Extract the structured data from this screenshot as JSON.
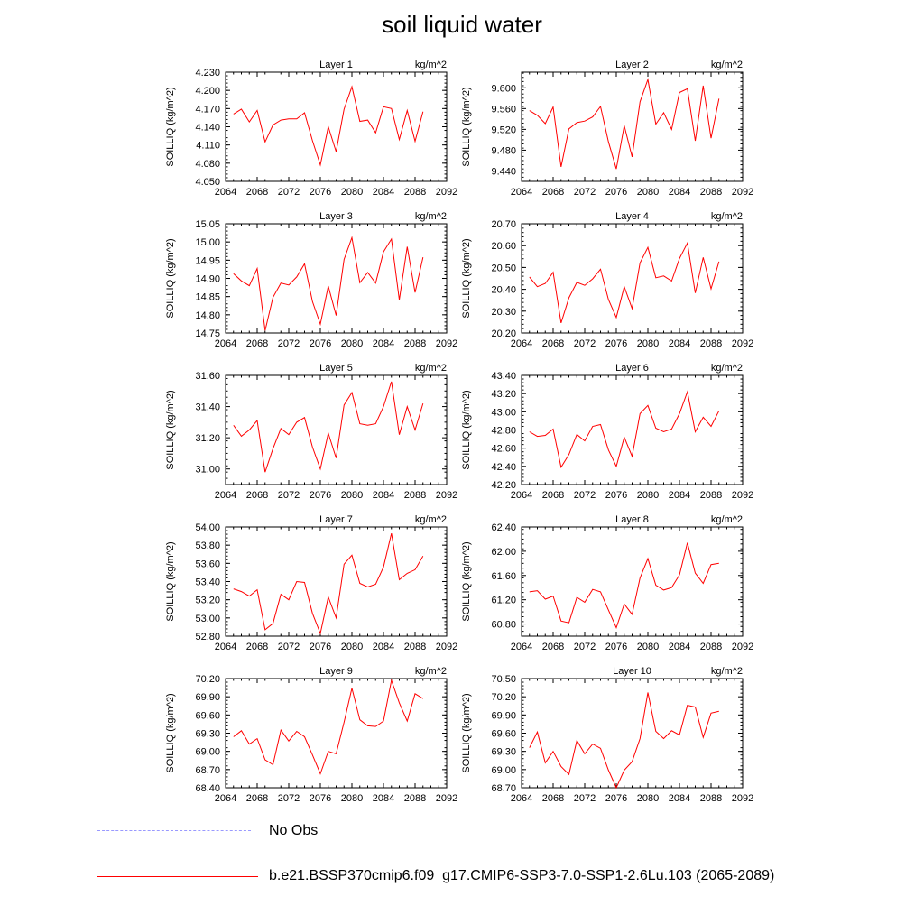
{
  "title": "soil liquid water",
  "legend": {
    "entries": [
      {
        "label": "No Obs",
        "color": "#9999ff",
        "style": "dashed"
      },
      {
        "label": "b.e21.BSSP370cmip6.f09_g17.CMIP6-SSP3-7.0-SSP1-2.6Lu.103 (2065-2089)",
        "color": "#ff0000",
        "style": "solid"
      }
    ]
  },
  "chart_data": [
    {
      "type": "line",
      "title": "Layer 1",
      "units": "kg/m^2",
      "ylabel": "SOILLIQ  (kg/m^2)",
      "xlim": [
        2064,
        2092
      ],
      "xticks": [
        2064,
        2068,
        2072,
        2076,
        2080,
        2084,
        2088,
        2092
      ],
      "ylim": [
        4.05,
        4.23
      ],
      "yticks": [
        "4.050",
        "4.080",
        "4.110",
        "4.140",
        "4.170",
        "4.200",
        "4.230"
      ],
      "x": [
        2065,
        2066,
        2067,
        2068,
        2069,
        2070,
        2071,
        2072,
        2073,
        2074,
        2075,
        2076,
        2077,
        2078,
        2079,
        2080,
        2081,
        2082,
        2083,
        2084,
        2085,
        2086,
        2087,
        2088,
        2089
      ],
      "series": [
        {
          "color": "#ff0000",
          "values": [
            4.161,
            4.169,
            4.148,
            4.167,
            4.115,
            4.143,
            4.151,
            4.153,
            4.153,
            4.163,
            4.117,
            4.077,
            4.14,
            4.099,
            4.169,
            4.206,
            4.149,
            4.151,
            4.13,
            4.173,
            4.17,
            4.119,
            4.167,
            4.116,
            4.165
          ]
        }
      ]
    },
    {
      "type": "line",
      "title": "Layer 2",
      "units": "kg/m^2",
      "ylabel": "SOILLIQ  (kg/m^2)",
      "xlim": [
        2064,
        2092
      ],
      "xticks": [
        2064,
        2068,
        2072,
        2076,
        2080,
        2084,
        2088,
        2092
      ],
      "ylim": [
        9.42,
        9.63
      ],
      "yticks": [
        "9.440",
        "9.480",
        "9.520",
        "9.560",
        "9.600"
      ],
      "x": [
        2065,
        2066,
        2067,
        2068,
        2069,
        2070,
        2071,
        2072,
        2073,
        2074,
        2075,
        2076,
        2077,
        2078,
        2079,
        2080,
        2081,
        2082,
        2083,
        2084,
        2085,
        2086,
        2087,
        2088,
        2089
      ],
      "series": [
        {
          "color": "#ff0000",
          "values": [
            9.556,
            9.547,
            9.531,
            9.563,
            9.448,
            9.521,
            9.533,
            9.536,
            9.544,
            9.564,
            9.496,
            9.444,
            9.527,
            9.467,
            9.573,
            9.616,
            9.53,
            9.552,
            9.52,
            9.591,
            9.598,
            9.498,
            9.604,
            9.503,
            9.579
          ]
        }
      ]
    },
    {
      "type": "line",
      "title": "Layer 3",
      "units": "kg/m^2",
      "ylabel": "SOILLIQ  (kg/m^2)",
      "xlim": [
        2064,
        2092
      ],
      "xticks": [
        2064,
        2068,
        2072,
        2076,
        2080,
        2084,
        2088,
        2092
      ],
      "ylim": [
        14.75,
        15.05
      ],
      "yticks": [
        "14.75",
        "14.80",
        "14.85",
        "14.90",
        "14.95",
        "15.00",
        "15.05"
      ],
      "x": [
        2065,
        2066,
        2067,
        2068,
        2069,
        2070,
        2071,
        2072,
        2073,
        2074,
        2075,
        2076,
        2077,
        2078,
        2079,
        2080,
        2081,
        2082,
        2083,
        2084,
        2085,
        2086,
        2087,
        2088,
        2089
      ],
      "series": [
        {
          "color": "#ff0000",
          "values": [
            14.913,
            14.893,
            14.88,
            14.927,
            14.757,
            14.848,
            14.887,
            14.882,
            14.904,
            14.94,
            14.836,
            14.774,
            14.879,
            14.798,
            14.952,
            15.012,
            14.888,
            14.916,
            14.887,
            14.973,
            15.008,
            14.841,
            14.987,
            14.861,
            14.958
          ]
        }
      ]
    },
    {
      "type": "line",
      "title": "Layer 4",
      "units": "kg/m^2",
      "ylabel": "SOILLIQ  (kg/m^2)",
      "xlim": [
        2064,
        2092
      ],
      "xticks": [
        2064,
        2068,
        2072,
        2076,
        2080,
        2084,
        2088,
        2092
      ],
      "ylim": [
        20.2,
        20.7
      ],
      "yticks": [
        "20.20",
        "20.30",
        "20.40",
        "20.50",
        "20.60",
        "20.70"
      ],
      "x": [
        2065,
        2066,
        2067,
        2068,
        2069,
        2070,
        2071,
        2072,
        2073,
        2074,
        2075,
        2076,
        2077,
        2078,
        2079,
        2080,
        2081,
        2082,
        2083,
        2084,
        2085,
        2086,
        2087,
        2088,
        2089
      ],
      "series": [
        {
          "color": "#ff0000",
          "values": [
            20.456,
            20.412,
            20.427,
            20.478,
            20.246,
            20.361,
            20.432,
            20.418,
            20.448,
            20.492,
            20.353,
            20.271,
            20.412,
            20.312,
            20.521,
            20.592,
            20.453,
            20.461,
            20.438,
            20.541,
            20.612,
            20.383,
            20.546,
            20.402,
            20.527
          ]
        }
      ]
    },
    {
      "type": "line",
      "title": "Layer 5",
      "units": "kg/m^2",
      "ylabel": "SOILLIQ  (kg/m^2)",
      "xlim": [
        2064,
        2092
      ],
      "xticks": [
        2064,
        2068,
        2072,
        2076,
        2080,
        2084,
        2088,
        2092
      ],
      "ylim": [
        30.9,
        31.6
      ],
      "yticks": [
        "31.00",
        "31.20",
        "31.40",
        "31.60"
      ],
      "x": [
        2065,
        2066,
        2067,
        2068,
        2069,
        2070,
        2071,
        2072,
        2073,
        2074,
        2075,
        2076,
        2077,
        2078,
        2079,
        2080,
        2081,
        2082,
        2083,
        2084,
        2085,
        2086,
        2087,
        2088,
        2089
      ],
      "series": [
        {
          "color": "#ff0000",
          "values": [
            31.28,
            31.21,
            31.25,
            31.31,
            30.98,
            31.13,
            31.26,
            31.22,
            31.3,
            31.33,
            31.14,
            31.0,
            31.23,
            31.07,
            31.41,
            31.49,
            31.29,
            31.28,
            31.29,
            31.4,
            31.56,
            31.22,
            31.4,
            31.25,
            31.42
          ]
        }
      ]
    },
    {
      "type": "line",
      "title": "Layer 6",
      "units": "kg/m^2",
      "ylabel": "SOILLIQ  (kg/m^2)",
      "xlim": [
        2064,
        2092
      ],
      "xticks": [
        2064,
        2068,
        2072,
        2076,
        2080,
        2084,
        2088,
        2092
      ],
      "ylim": [
        42.2,
        43.4
      ],
      "yticks": [
        "42.20",
        "42.40",
        "42.60",
        "42.80",
        "43.00",
        "43.20",
        "43.40"
      ],
      "x": [
        2065,
        2066,
        2067,
        2068,
        2069,
        2070,
        2071,
        2072,
        2073,
        2074,
        2075,
        2076,
        2077,
        2078,
        2079,
        2080,
        2081,
        2082,
        2083,
        2084,
        2085,
        2086,
        2087,
        2088,
        2089
      ],
      "series": [
        {
          "color": "#ff0000",
          "values": [
            42.78,
            42.73,
            42.74,
            42.81,
            42.39,
            42.53,
            42.75,
            42.68,
            42.84,
            42.86,
            42.58,
            42.4,
            42.72,
            42.51,
            42.98,
            43.07,
            42.82,
            42.78,
            42.81,
            42.98,
            43.22,
            42.78,
            42.94,
            42.84,
            43.01
          ]
        }
      ]
    },
    {
      "type": "line",
      "title": "Layer 7",
      "units": "kg/m^2",
      "ylabel": "SOILLIQ  (kg/m^2)",
      "xlim": [
        2064,
        2092
      ],
      "xticks": [
        2064,
        2068,
        2072,
        2076,
        2080,
        2084,
        2088,
        2092
      ],
      "ylim": [
        52.8,
        54.0
      ],
      "yticks": [
        "52.80",
        "53.00",
        "53.20",
        "53.40",
        "53.60",
        "53.80",
        "54.00"
      ],
      "x": [
        2065,
        2066,
        2067,
        2068,
        2069,
        2070,
        2071,
        2072,
        2073,
        2074,
        2075,
        2076,
        2077,
        2078,
        2079,
        2080,
        2081,
        2082,
        2083,
        2084,
        2085,
        2086,
        2087,
        2088,
        2089
      ],
      "series": [
        {
          "color": "#ff0000",
          "values": [
            53.32,
            53.29,
            53.24,
            53.31,
            52.87,
            52.94,
            53.26,
            53.2,
            53.4,
            53.39,
            53.05,
            52.83,
            53.23,
            53.0,
            53.59,
            53.69,
            53.38,
            53.34,
            53.37,
            53.56,
            53.93,
            53.42,
            53.49,
            53.53,
            53.68
          ]
        }
      ]
    },
    {
      "type": "line",
      "title": "Layer 8",
      "units": "kg/m^2",
      "ylabel": "SOILLIQ  (kg/m^2)",
      "xlim": [
        2064,
        2092
      ],
      "xticks": [
        2064,
        2068,
        2072,
        2076,
        2080,
        2084,
        2088,
        2092
      ],
      "ylim": [
        60.6,
        62.4
      ],
      "yticks": [
        "60.80",
        "61.20",
        "61.60",
        "62.00",
        "62.40"
      ],
      "x": [
        2065,
        2066,
        2067,
        2068,
        2069,
        2070,
        2071,
        2072,
        2073,
        2074,
        2075,
        2076,
        2077,
        2078,
        2079,
        2080,
        2081,
        2082,
        2083,
        2084,
        2085,
        2086,
        2087,
        2088,
        2089
      ],
      "series": [
        {
          "color": "#ff0000",
          "values": [
            61.33,
            61.35,
            61.21,
            61.26,
            60.85,
            60.82,
            61.24,
            61.16,
            61.37,
            61.33,
            61.03,
            60.74,
            61.13,
            60.96,
            61.56,
            61.88,
            61.44,
            61.36,
            61.4,
            61.61,
            62.14,
            61.64,
            61.47,
            61.78,
            61.8
          ]
        }
      ]
    },
    {
      "type": "line",
      "title": "Layer 9",
      "units": "kg/m^2",
      "ylabel": "SOILLIQ  (kg/m^2)",
      "xlim": [
        2064,
        2092
      ],
      "xticks": [
        2064,
        2068,
        2072,
        2076,
        2080,
        2084,
        2088,
        2092
      ],
      "ylim": [
        68.4,
        70.2
      ],
      "yticks": [
        "68.40",
        "68.70",
        "69.00",
        "69.30",
        "69.60",
        "69.90",
        "70.20"
      ],
      "x": [
        2065,
        2066,
        2067,
        2068,
        2069,
        2070,
        2071,
        2072,
        2073,
        2074,
        2075,
        2076,
        2077,
        2078,
        2079,
        2080,
        2081,
        2082,
        2083,
        2084,
        2085,
        2086,
        2087,
        2088,
        2089
      ],
      "series": [
        {
          "color": "#ff0000",
          "values": [
            69.24,
            69.34,
            69.12,
            69.21,
            68.86,
            68.78,
            69.35,
            69.17,
            69.33,
            69.24,
            68.94,
            68.63,
            69.0,
            68.96,
            69.48,
            70.04,
            69.52,
            69.42,
            69.41,
            69.5,
            70.17,
            69.8,
            69.5,
            69.95,
            69.87
          ]
        }
      ]
    },
    {
      "type": "line",
      "title": "Layer 10",
      "units": "kg/m^2",
      "ylabel": "SOILLIQ  (kg/m^2)",
      "xlim": [
        2064,
        2092
      ],
      "xticks": [
        2064,
        2068,
        2072,
        2076,
        2080,
        2084,
        2088,
        2092
      ],
      "ylim": [
        68.7,
        70.5
      ],
      "yticks": [
        "68.70",
        "69.00",
        "69.30",
        "69.60",
        "69.90",
        "70.20",
        "70.50"
      ],
      "x": [
        2065,
        2066,
        2067,
        2068,
        2069,
        2070,
        2071,
        2072,
        2073,
        2074,
        2075,
        2076,
        2077,
        2078,
        2079,
        2080,
        2081,
        2082,
        2083,
        2084,
        2085,
        2086,
        2087,
        2088,
        2089
      ],
      "series": [
        {
          "color": "#ff0000",
          "values": [
            69.36,
            69.62,
            69.11,
            69.3,
            69.05,
            68.92,
            69.48,
            69.26,
            69.42,
            69.35,
            68.99,
            68.7,
            68.99,
            69.13,
            69.51,
            70.27,
            69.63,
            69.51,
            69.64,
            69.57,
            70.06,
            70.03,
            69.53,
            69.93,
            69.96
          ]
        }
      ]
    }
  ]
}
